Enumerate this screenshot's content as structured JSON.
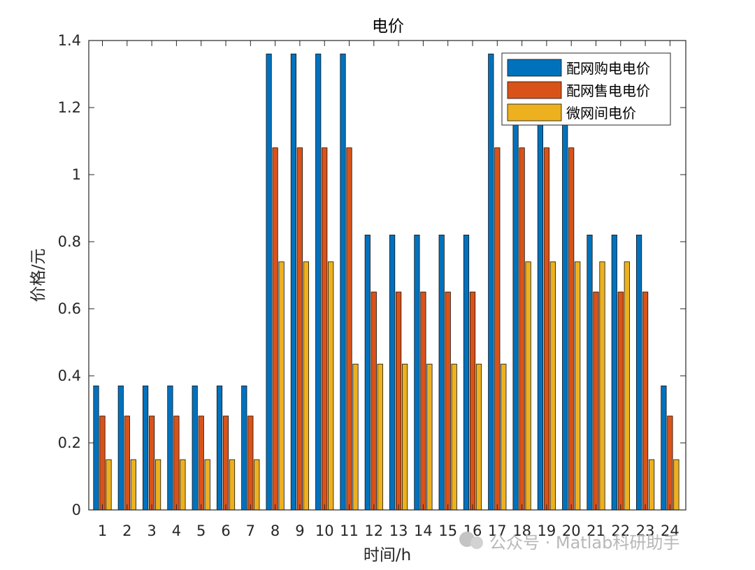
{
  "chart_data": {
    "type": "bar",
    "title": "电价",
    "xlabel": "时间/h",
    "ylabel": "价格/元",
    "categories": [
      "1",
      "2",
      "3",
      "4",
      "5",
      "6",
      "7",
      "8",
      "9",
      "10",
      "11",
      "12",
      "13",
      "14",
      "15",
      "16",
      "17",
      "18",
      "19",
      "20",
      "21",
      "22",
      "23",
      "24"
    ],
    "ylim": [
      0,
      1.4
    ],
    "yticks": [
      "0",
      "0.2",
      "0.4",
      "0.6",
      "0.8",
      "1",
      "1.2",
      "1.4"
    ],
    "legend_position": "top-right",
    "grid": false,
    "series": [
      {
        "name": "配网购电电价",
        "color": "#0072BD",
        "values": [
          0.37,
          0.37,
          0.37,
          0.37,
          0.37,
          0.37,
          0.37,
          1.36,
          1.36,
          1.36,
          1.36,
          0.82,
          0.82,
          0.82,
          0.82,
          0.82,
          1.36,
          1.36,
          1.36,
          1.36,
          0.82,
          0.82,
          0.82,
          0.37
        ]
      },
      {
        "name": "配网售电电价",
        "color": "#D95319",
        "values": [
          0.28,
          0.28,
          0.28,
          0.28,
          0.28,
          0.28,
          0.28,
          1.08,
          1.08,
          1.08,
          1.08,
          0.65,
          0.65,
          0.65,
          0.65,
          0.65,
          1.08,
          1.08,
          1.08,
          1.08,
          0.65,
          0.65,
          0.65,
          0.28
        ]
      },
      {
        "name": "微网间电价",
        "color": "#EDB120",
        "values": [
          0.15,
          0.15,
          0.15,
          0.15,
          0.15,
          0.15,
          0.15,
          0.74,
          0.74,
          0.74,
          0.435,
          0.435,
          0.435,
          0.435,
          0.435,
          0.435,
          0.435,
          0.74,
          0.74,
          0.74,
          0.74,
          0.74,
          0.15,
          0.15
        ]
      }
    ]
  },
  "watermark": "公众号 · Matlab科研助手"
}
